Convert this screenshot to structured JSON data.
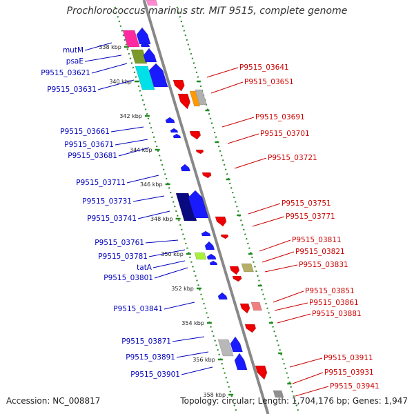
{
  "title": "Prochlorococcus marinus str. MIT 9515, complete genome",
  "footer": {
    "accession": "Accession: NC_008817",
    "summary": "Topology: circular; Length: 1,704,176 bp; Genes: 1,947"
  },
  "colors": {
    "forward_label": "#0000bb",
    "reverse_label": "#cc0000",
    "backbone": "#888888",
    "dotted_track": "#2e8b2e"
  },
  "ticks": [
    {
      "label": "338 kbp",
      "kbp": 338
    },
    {
      "label": "340 kbp",
      "kbp": 340
    },
    {
      "label": "342 kbp",
      "kbp": 342
    },
    {
      "label": "344 kbp",
      "kbp": 344
    },
    {
      "label": "346 kbp",
      "kbp": 346
    },
    {
      "label": "348 kbp",
      "kbp": 348
    },
    {
      "label": "350 kbp",
      "kbp": 350
    },
    {
      "label": "352 kbp",
      "kbp": 352
    },
    {
      "label": "354 kbp",
      "kbp": 354
    },
    {
      "label": "356 kbp",
      "kbp": 356
    },
    {
      "label": "358 kbp",
      "kbp": 358
    }
  ],
  "forward_genes": [
    {
      "label": "mutM"
    },
    {
      "label": "psaE"
    },
    {
      "label": "P9515_03621"
    },
    {
      "label": "P9515_03631"
    },
    {
      "label": "P9515_03661"
    },
    {
      "label": "P9515_03671"
    },
    {
      "label": "P9515_03681"
    },
    {
      "label": "P9515_03711"
    },
    {
      "label": "P9515_03731"
    },
    {
      "label": "P9515_03741"
    },
    {
      "label": "P9515_03761"
    },
    {
      "label": "P9515_03781"
    },
    {
      "label": "tatA"
    },
    {
      "label": "P9515_03801"
    },
    {
      "label": "P9515_03841"
    },
    {
      "label": "P9515_03871"
    },
    {
      "label": "P9515_03891"
    },
    {
      "label": "P9515_03901"
    }
  ],
  "reverse_genes": [
    {
      "label": "P9515_03641"
    },
    {
      "label": "P9515_03651"
    },
    {
      "label": "P9515_03691"
    },
    {
      "label": "P9515_03701"
    },
    {
      "label": "P9515_03721"
    },
    {
      "label": "P9515_03751"
    },
    {
      "label": "P9515_03771"
    },
    {
      "label": "P9515_03811"
    },
    {
      "label": "P9515_03821"
    },
    {
      "label": "P9515_03831"
    },
    {
      "label": "P9515_03851"
    },
    {
      "label": "P9515_03861"
    },
    {
      "label": "P9515_03881"
    },
    {
      "label": "P9515_03911"
    },
    {
      "label": "P9515_03931"
    },
    {
      "label": "P9515_03941"
    }
  ]
}
